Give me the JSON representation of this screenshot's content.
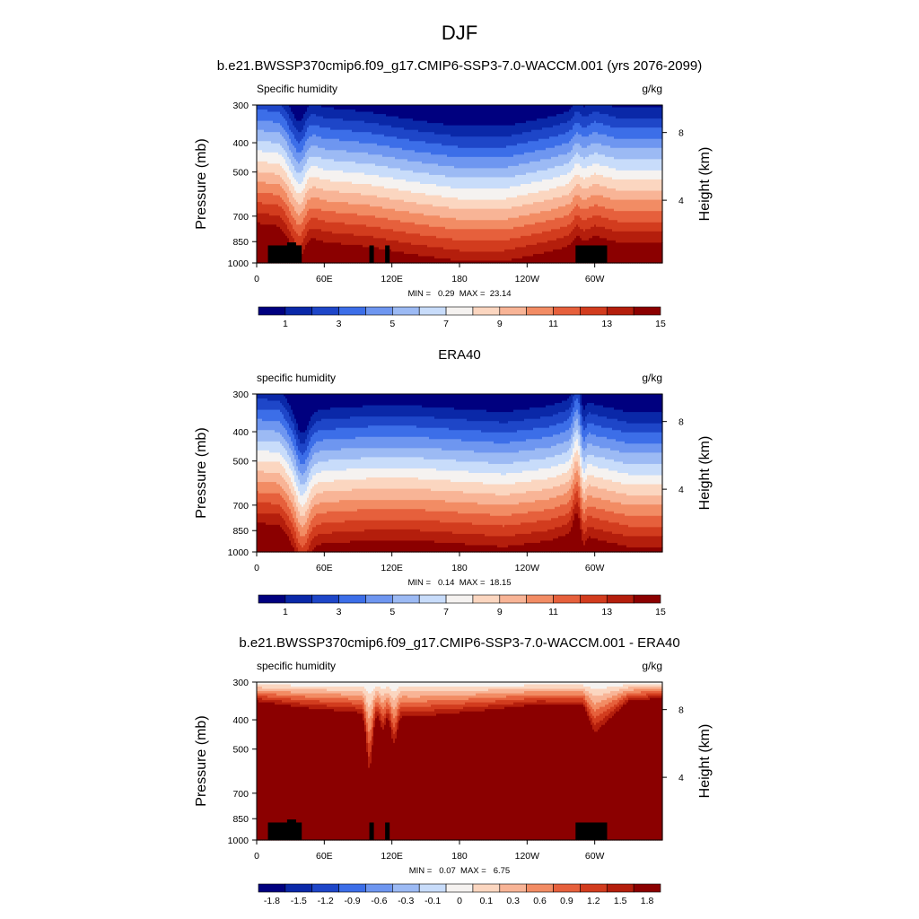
{
  "title": "DJF",
  "colors": {
    "sequential": [
      "#00007f",
      "#0a28a8",
      "#1e46c8",
      "#3c6ee8",
      "#6e96f0",
      "#9cbaf4",
      "#c8dcfa",
      "#f5f2f0",
      "#fbd6c0",
      "#f8b496",
      "#f28c64",
      "#e6603c",
      "#d23c1e",
      "#b41e0c",
      "#8b0000"
    ],
    "diverging": [
      "#00007f",
      "#0a28a8",
      "#1e46c8",
      "#3c6ee8",
      "#6e96f0",
      "#9cbaf4",
      "#c8dcfa",
      "#f5f2f0",
      "#fbd6c0",
      "#f8b496",
      "#f28c64",
      "#e6603c",
      "#d23c1e",
      "#b41e0c",
      "#8b0000"
    ],
    "land": "#000000"
  },
  "chart_data": [
    {
      "type": "heatmap",
      "title": "b.e21.BWSSP370cmip6.f09_g17.CMIP6-SSP3-7.0-WACCM.001 (yrs 2076-2099)",
      "left_label": "Specific humidity",
      "units": "g/kg",
      "ylabel": "Pressure (mb)",
      "ylabel_right": "Height (km)",
      "y_ticks": [
        "300",
        "400",
        "500",
        "700",
        "850",
        "1000"
      ],
      "y_right_ticks": [
        "8",
        "4"
      ],
      "x_ticks": [
        "0",
        "60E",
        "120E",
        "180",
        "120W",
        "60W"
      ],
      "xlim": [
        0,
        360
      ],
      "ylim": [
        1000,
        300
      ],
      "stats": "MIN =   0.29  MAX =  23.14",
      "colorbar_labels": [
        "1",
        "3",
        "5",
        "7",
        "9",
        "11",
        "13",
        "15"
      ],
      "colorbar_palette": "sequential",
      "profile": "model"
    },
    {
      "type": "heatmap",
      "title": "ERA40",
      "left_label": "specific humidity",
      "units": "g/kg",
      "ylabel": "Pressure (mb)",
      "ylabel_right": "Height (km)",
      "y_ticks": [
        "300",
        "400",
        "500",
        "700",
        "850",
        "1000"
      ],
      "y_right_ticks": [
        "8",
        "4"
      ],
      "x_ticks": [
        "0",
        "60E",
        "120E",
        "180",
        "120W",
        "60W"
      ],
      "xlim": [
        0,
        360
      ],
      "ylim": [
        1000,
        300
      ],
      "stats": "MIN =   0.14  MAX =  18.15",
      "colorbar_labels": [
        "1",
        "3",
        "5",
        "7",
        "9",
        "11",
        "13",
        "15"
      ],
      "colorbar_palette": "sequential",
      "profile": "era"
    },
    {
      "type": "heatmap",
      "title": "b.e21.BWSSP370cmip6.f09_g17.CMIP6-SSP3-7.0-WACCM.001 - ERA40",
      "left_label": "specific humidity",
      "units": "g/kg",
      "ylabel": "Pressure (mb)",
      "ylabel_right": "Height (km)",
      "y_ticks": [
        "300",
        "400",
        "500",
        "700",
        "850",
        "1000"
      ],
      "y_right_ticks": [
        "8",
        "4"
      ],
      "x_ticks": [
        "0",
        "60E",
        "120E",
        "180",
        "120W",
        "60W"
      ],
      "xlim": [
        0,
        360
      ],
      "ylim": [
        1000,
        300
      ],
      "stats": "MIN =   0.07  MAX =   6.75",
      "colorbar_labels": [
        "-1.8",
        "-1.5",
        "-1.2",
        "-0.9",
        "-0.6",
        "-0.3",
        "-0.1",
        "0",
        "0.1",
        "0.3",
        "0.6",
        "0.9",
        "1.2",
        "1.5",
        "1.8"
      ],
      "colorbar_palette": "diverging",
      "profile": "diff"
    }
  ]
}
